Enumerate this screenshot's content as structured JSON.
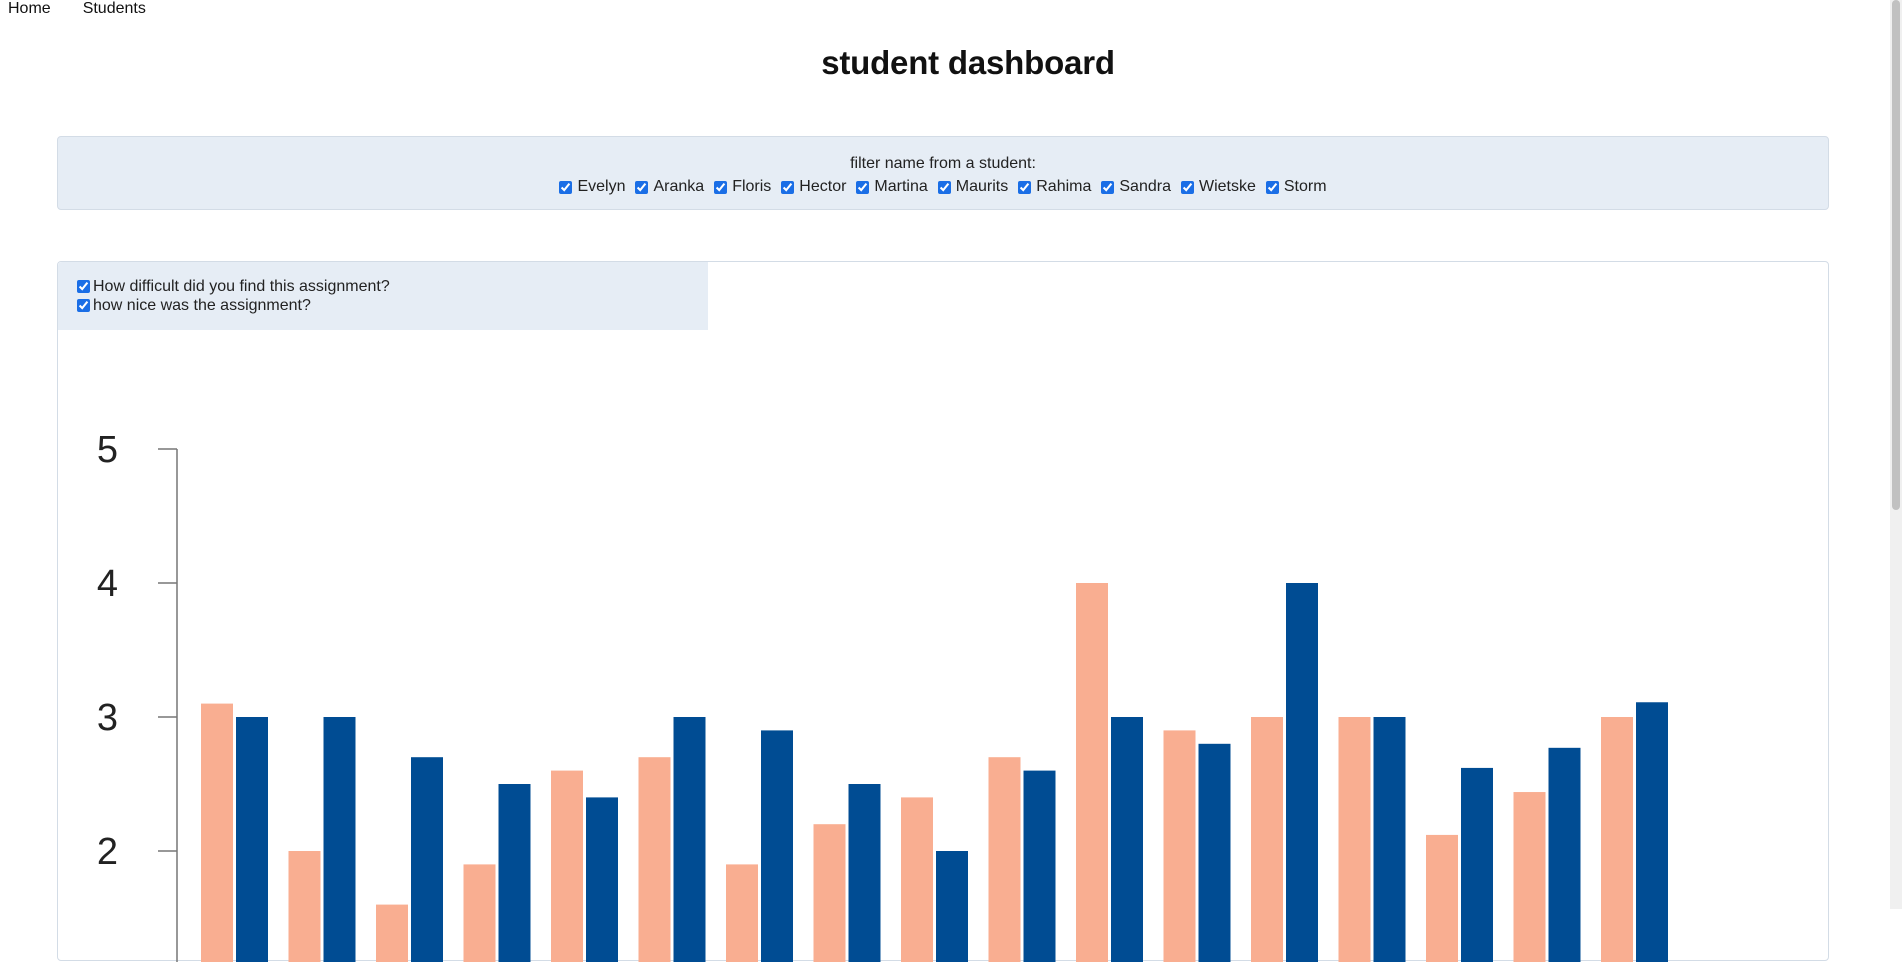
{
  "nav": {
    "items": [
      {
        "label": "Home"
      },
      {
        "label": "Students"
      }
    ]
  },
  "title": "student dashboard",
  "filter": {
    "label": "filter name from a student:",
    "students": [
      "Evelyn",
      "Aranka",
      "Floris",
      "Hector",
      "Martina",
      "Maurits",
      "Rahima",
      "Sandra",
      "Wietske",
      "Storm"
    ]
  },
  "legend": {
    "items": [
      {
        "label": "How difficult did you find this assignment?",
        "checked": true,
        "color": "#f9ae91"
      },
      {
        "label": "how nice was the assignment?",
        "checked": true,
        "color": "#004c93"
      }
    ]
  },
  "chart_data": {
    "type": "bar",
    "ylim": [
      1,
      5
    ],
    "yticks": [
      2,
      3,
      4,
      5
    ],
    "xlabel": "",
    "ylabel": "",
    "series": [
      {
        "color": "#f9ae91",
        "values": [
          3.1,
          2.0,
          1.6,
          1.9,
          2.6,
          2.7,
          1.9,
          2.2,
          2.4,
          2.7,
          4.0,
          2.9,
          3.0,
          3.0,
          2.12,
          2.44,
          3.0
        ]
      },
      {
        "color": "#004c93",
        "values": [
          3.0,
          3.0,
          2.7,
          2.5,
          2.4,
          3.0,
          2.9,
          2.5,
          2.0,
          2.6,
          3.0,
          2.8,
          4.0,
          3.0,
          2.62,
          2.77,
          3.11
        ]
      }
    ]
  }
}
